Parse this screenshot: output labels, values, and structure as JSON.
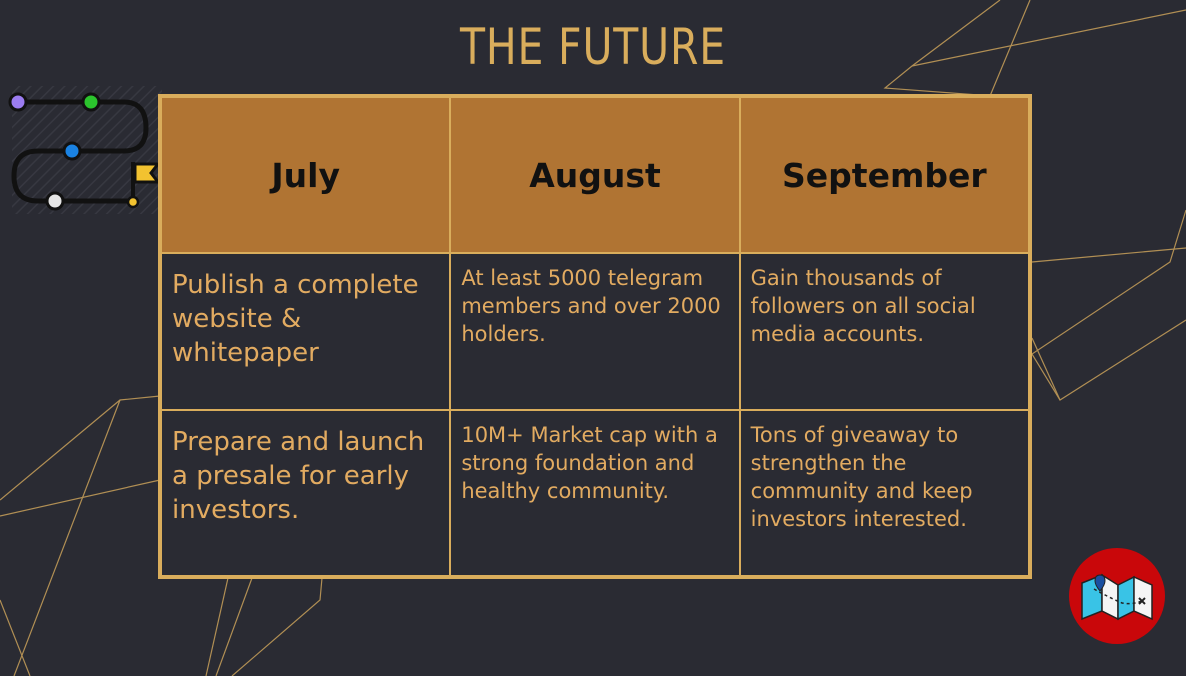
{
  "title": "THE FUTURE",
  "columns": [
    "July",
    "August",
    "September"
  ],
  "rows": [
    [
      "Publish a complete website & whitepaper",
      "At least 5000 telegram members and over 2000 holders.",
      "Gain thousands of followers on all social media accounts."
    ],
    [
      "Prepare and launch a presale for early investors.",
      "10M+ Market cap with a strong foundation and healthy community.",
      "Tons of giveaway to strengthen the community and keep investors interested."
    ]
  ],
  "icons": {
    "roadmap": "roadmap-path-icon",
    "map": "map-icon"
  },
  "colors": {
    "background": "#2a2b33",
    "accent": "#d9ad5c",
    "header_fill": "#b07433",
    "badge": "#c9070a"
  }
}
